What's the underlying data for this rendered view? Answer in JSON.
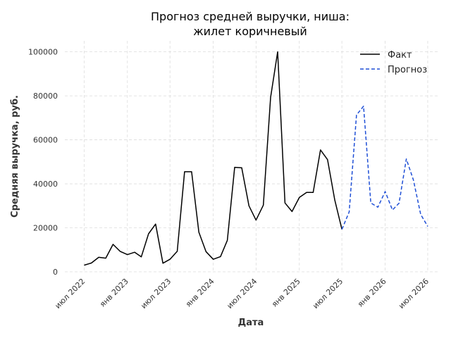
{
  "chart_data": {
    "type": "line",
    "title_lines": [
      "Прогноз средней выручки, ниша:",
      "жилет коричневый"
    ],
    "xlabel": "Дата",
    "ylabel": "Средняя выручка, руб.",
    "ylim": [
      0,
      105000
    ],
    "xlim": [
      "2022-04-10",
      "2026-08-15"
    ],
    "y_ticks": [
      0,
      20000,
      40000,
      60000,
      80000,
      100000
    ],
    "x_ticks": [
      {
        "date": "2022-07-01",
        "label": "июл 2022"
      },
      {
        "date": "2023-01-01",
        "label": "янв 2023"
      },
      {
        "date": "2023-07-01",
        "label": "июл 2023"
      },
      {
        "date": "2024-01-01",
        "label": "янв 2024"
      },
      {
        "date": "2024-07-01",
        "label": "июл 2024"
      },
      {
        "date": "2025-01-01",
        "label": "янв 2025"
      },
      {
        "date": "2025-07-01",
        "label": "июл 2025"
      },
      {
        "date": "2026-01-01",
        "label": "янв 2026"
      },
      {
        "date": "2026-07-01",
        "label": "июл 2026"
      }
    ],
    "grid": true,
    "legend_position": "top-right",
    "series": [
      {
        "name": "Факт",
        "color": "#000000",
        "style": "solid",
        "points": [
          [
            "2022-07-01",
            3000
          ],
          [
            "2022-08-01",
            4000
          ],
          [
            "2022-09-01",
            6600
          ],
          [
            "2022-10-01",
            6200
          ],
          [
            "2022-11-01",
            12500
          ],
          [
            "2022-12-01",
            9300
          ],
          [
            "2023-01-01",
            7800
          ],
          [
            "2023-02-01",
            8900
          ],
          [
            "2023-03-01",
            6800
          ],
          [
            "2023-04-01",
            17300
          ],
          [
            "2023-05-01",
            21700
          ],
          [
            "2023-06-01",
            3900
          ],
          [
            "2023-07-01",
            5700
          ],
          [
            "2023-08-01",
            9300
          ],
          [
            "2023-09-01",
            45500
          ],
          [
            "2023-10-01",
            45500
          ],
          [
            "2023-11-01",
            18000
          ],
          [
            "2023-12-01",
            9200
          ],
          [
            "2024-01-01",
            5700
          ],
          [
            "2024-02-01",
            6900
          ],
          [
            "2024-03-01",
            14300
          ],
          [
            "2024-04-01",
            47500
          ],
          [
            "2024-05-01",
            47300
          ],
          [
            "2024-06-01",
            30000
          ],
          [
            "2024-07-01",
            23500
          ],
          [
            "2024-08-01",
            30300
          ],
          [
            "2024-09-01",
            79300
          ],
          [
            "2024-10-01",
            100000
          ],
          [
            "2024-11-01",
            31300
          ],
          [
            "2024-12-01",
            27400
          ],
          [
            "2025-01-01",
            33800
          ],
          [
            "2025-02-01",
            36100
          ],
          [
            "2025-03-01",
            36100
          ],
          [
            "2025-04-01",
            55400
          ],
          [
            "2025-05-01",
            51000
          ],
          [
            "2025-06-01",
            32600
          ],
          [
            "2025-07-01",
            19300
          ]
        ]
      },
      {
        "name": "Прогноз",
        "color": "#1f4fd6",
        "style": "dashed",
        "points": [
          [
            "2025-07-01",
            19300
          ],
          [
            "2025-08-01",
            27200
          ],
          [
            "2025-09-01",
            71300
          ],
          [
            "2025-10-01",
            75300
          ],
          [
            "2025-11-01",
            31300
          ],
          [
            "2025-12-01",
            29400
          ],
          [
            "2026-01-01",
            36500
          ],
          [
            "2026-02-01",
            28100
          ],
          [
            "2026-03-01",
            31200
          ],
          [
            "2026-04-01",
            51300
          ],
          [
            "2026-05-01",
            41800
          ],
          [
            "2026-06-01",
            26100
          ],
          [
            "2026-07-01",
            20600
          ]
        ]
      }
    ]
  }
}
